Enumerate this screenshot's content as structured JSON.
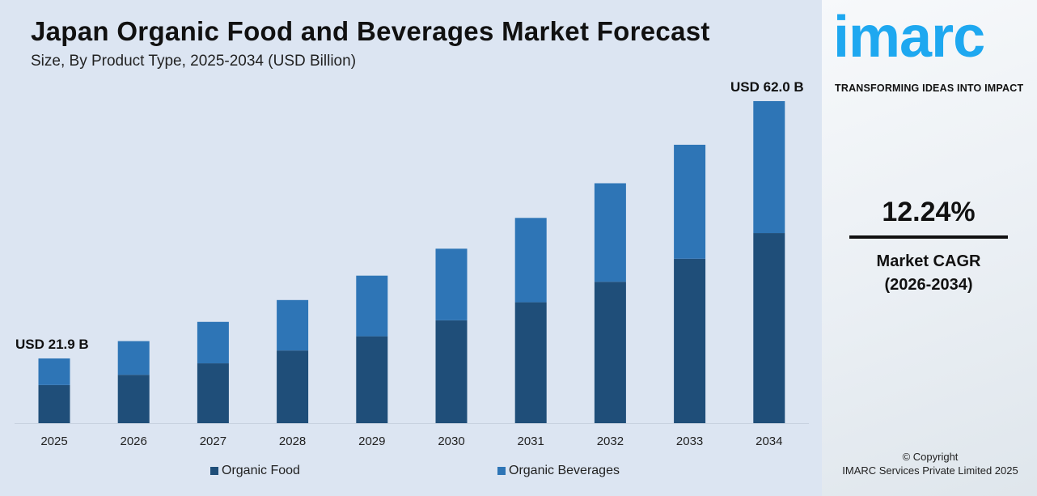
{
  "header": {
    "title": "Japan Organic Food and Beverages Market Forecast",
    "subtitle": "Size, By Product Type, 2025-2034 (USD Billion)"
  },
  "chart_data": {
    "type": "bar",
    "stacked": true,
    "title": "Japan Organic Food and Beverages Market Forecast",
    "subtitle": "Size, By Product Type, 2025-2034 (USD Billion)",
    "categories": [
      "2025",
      "2026",
      "2027",
      "2028",
      "2029",
      "2030",
      "2031",
      "2032",
      "2033",
      "2034"
    ],
    "series": [
      {
        "name": "Organic Food",
        "color": "#1f4e79",
        "values": [
          12.9,
          14.5,
          16.3,
          18.3,
          20.5,
          23.0,
          25.8,
          29.0,
          32.6,
          36.6
        ]
      },
      {
        "name": "Organic Beverages",
        "color": "#2e75b6",
        "values": [
          9.0,
          10.1,
          11.3,
          12.7,
          14.3,
          16.0,
          18.0,
          20.2,
          22.6,
          25.4
        ]
      }
    ],
    "totals": [
      21.9,
      24.6,
      27.6,
      31.0,
      34.8,
      39.0,
      43.8,
      49.2,
      55.2,
      62.0
    ],
    "annotations": {
      "first": "USD 21.9 B",
      "last": "USD 62.0 B"
    },
    "legend_position": "bottom",
    "grid": false
  },
  "sidebar": {
    "logo": "imarc",
    "tagline": "TRANSFORMING IDEAS INTO IMPACT",
    "cagr_value": "12.24%",
    "cagr_label": "Market CAGR",
    "cagr_period": "(2026-2034)",
    "copyright": "© Copyright",
    "company": "IMARC Services Private Limited 2025"
  }
}
